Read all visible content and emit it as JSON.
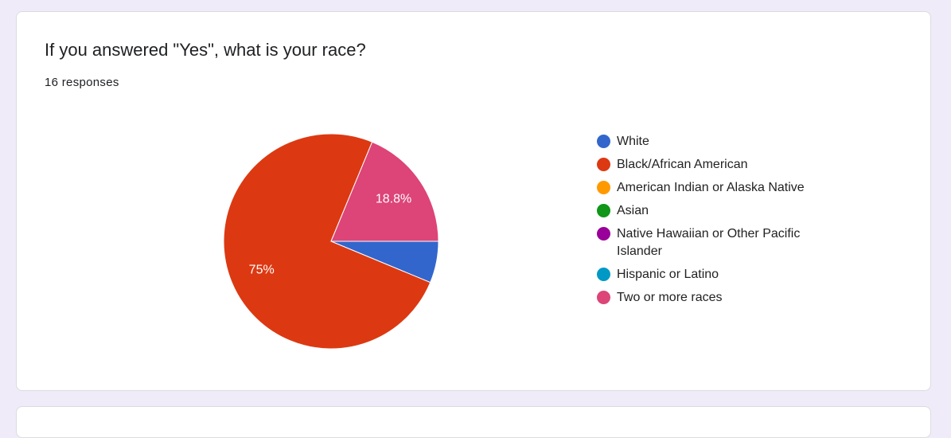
{
  "chart_data": {
    "type": "pie",
    "title": "If you answered \"Yes\", what is your race?",
    "subtitle": "16 responses",
    "categories": [
      "White",
      "Black/African American",
      "American Indian or Alaska Native",
      "Asian",
      "Native Hawaiian or Other Pacific Islander",
      "Hispanic or Latino",
      "Two or more races"
    ],
    "values": [
      6.25,
      75,
      0,
      0,
      0,
      0,
      18.75
    ],
    "value_labels": [
      null,
      "75%",
      null,
      null,
      null,
      null,
      "18.8%"
    ],
    "colors": [
      "#3366cc",
      "#dc3912",
      "#ff9900",
      "#109618",
      "#990099",
      "#0099c6",
      "#dd4477"
    ],
    "legend": "right"
  }
}
